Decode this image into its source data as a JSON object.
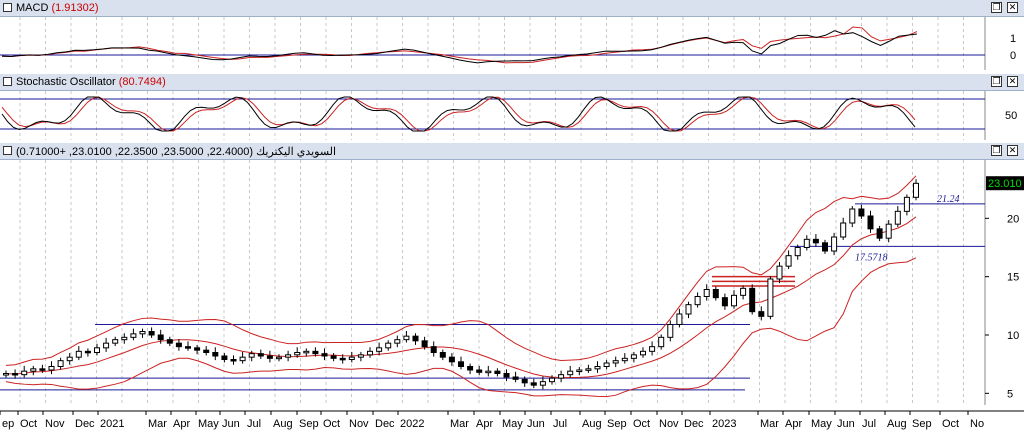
{
  "macd": {
    "title": "MACD",
    "value": "(1.91302)",
    "y_ticks": [
      "1",
      "0"
    ]
  },
  "stoch": {
    "title": "Stochastic Oscillator",
    "value": "(80.7494)",
    "y_ticks": [
      "50"
    ]
  },
  "price": {
    "title": "السويدي اليكتريك",
    "ohlc": "(22.4000, 23.5000, 22.3500, 23.0100, +0.71000)",
    "last_price": "23.010",
    "y_ticks": [
      "20",
      "15",
      "10",
      "5"
    ],
    "annotations": [
      "21.24",
      "17.5718"
    ]
  },
  "window_buttons": {
    "restore": "❐",
    "close": "✕"
  },
  "x_axis": {
    "labels": [
      "ep",
      "Oct",
      "Nov",
      "Dec",
      "2021",
      "Mar",
      "Apr",
      "May",
      "Jun",
      "Jul",
      "Aug",
      "Sep",
      "Oct",
      "Nov",
      "Dec",
      "2022",
      "Mar",
      "Apr",
      "May",
      "Jun",
      "Jul",
      "Aug",
      "Sep",
      "Oct",
      "Nov",
      "Dec",
      "2023",
      "Mar",
      "Apr",
      "May",
      "Jun",
      "Jul",
      "Aug",
      "Sep",
      "Oct",
      "No"
    ]
  },
  "colors": {
    "title_bg": "#d9e1ef",
    "up_candle": "#ffffff",
    "down_candle": "#000000",
    "band": "#cc2222",
    "hline": "#1a1a99",
    "last_bg": "#000000",
    "last_fg": "#00dd00"
  },
  "chart_data": {
    "type": "candlestick",
    "ylim": [
      4,
      25
    ],
    "closes": [
      6.7,
      6.6,
      6.9,
      7.1,
      7.0,
      7.3,
      7.8,
      8.1,
      8.6,
      8.5,
      8.9,
      9.3,
      9.6,
      9.8,
      10.1,
      10.3,
      10.0,
      9.6,
      9.3,
      9.0,
      8.9,
      8.7,
      8.5,
      8.2,
      7.9,
      7.8,
      8.1,
      8.4,
      8.2,
      8.0,
      8.1,
      8.3,
      8.5,
      8.6,
      8.4,
      8.2,
      8.0,
      7.9,
      8.1,
      8.3,
      8.6,
      8.9,
      9.3,
      9.6,
      9.9,
      9.5,
      9.0,
      8.5,
      8.1,
      7.7,
      7.3,
      7.0,
      6.8,
      6.9,
      6.7,
      6.4,
      6.2,
      5.9,
      5.7,
      6.0,
      6.3,
      6.6,
      6.9,
      7.0,
      7.1,
      7.3,
      7.6,
      7.8,
      8.0,
      8.3,
      8.6,
      9.0,
      9.8,
      10.9,
      11.8,
      12.6,
      13.3,
      13.9,
      13.2,
      12.5,
      13.4,
      14.0,
      12.0,
      11.6,
      14.8,
      15.9,
      16.8,
      17.5,
      18.2,
      17.9,
      17.2,
      18.4,
      19.6,
      20.8,
      20.2,
      19.1,
      18.3,
      19.5,
      20.6,
      21.8,
      23.0
    ],
    "hlines": [
      10.9,
      17.6,
      21.24,
      6.3,
      5.3
    ]
  }
}
